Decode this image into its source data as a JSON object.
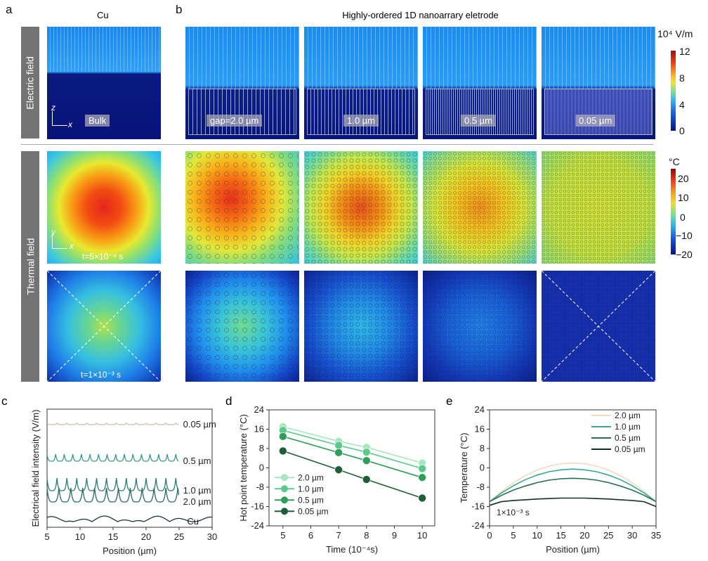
{
  "panel_a": {
    "letter": "a",
    "title": "Cu",
    "bulk_label": "Bulk",
    "axis_z": "z",
    "axis_x": "x",
    "axis_y": "y",
    "time1": "t=5×10⁻⁴ s",
    "time2": "t=1×10⁻³ s"
  },
  "row_labels": {
    "electric": "Electric field",
    "thermal": "Thermal field"
  },
  "panel_b": {
    "letter": "b",
    "title": "Highly-ordered 1D nanoarrary eletrode",
    "gaps": [
      "gap=2.0 µm",
      "1.0 µm",
      "0.5 µm",
      "0.05 µm"
    ]
  },
  "colorbar_e": {
    "unit": "10⁴ V/m",
    "ticks": [
      "12",
      "8",
      "4",
      "0"
    ],
    "colormap": "jet"
  },
  "colorbar_t": {
    "unit": "°C",
    "ticks": [
      "20",
      "10",
      "0",
      "−10",
      "−20"
    ],
    "colormap": "jet"
  },
  "chart_data": [
    {
      "panel": "c",
      "type": "line",
      "xlabel": "Position (µm)",
      "ylabel": "Electrical field intensity (V/m)",
      "xlim": [
        5,
        30
      ],
      "xticks": [
        "5",
        "10",
        "15",
        "20",
        "25",
        "30"
      ],
      "series": [
        {
          "name": "0.05 µm",
          "color": "#c8c0b0"
        },
        {
          "name": "0.5 µm",
          "color": "#3a9a8a"
        },
        {
          "name": "1.0 µm",
          "color": "#2e7d70"
        },
        {
          "name": "2.0 µm",
          "color": "#2a6b60"
        },
        {
          "name": "Cu",
          "color": "#1f3440"
        }
      ]
    },
    {
      "panel": "d",
      "type": "line",
      "xlabel": "Time (10⁻⁴s)",
      "ylabel": "Hot point temperature (°C)",
      "xlim": [
        4.5,
        10.45
      ],
      "ylim": [
        -24,
        24
      ],
      "xticks": [
        "5",
        "6",
        "7",
        "8",
        "9",
        "10"
      ],
      "yticks": [
        "24",
        "16",
        "8",
        "0",
        "-8",
        "-16",
        "-24"
      ],
      "legend": "bottom-left",
      "x": [
        5,
        7,
        8,
        10
      ],
      "series": [
        {
          "name": "2.0 µm",
          "color": "#a8e6c0",
          "values": [
            17,
            11,
            8.5,
            2
          ]
        },
        {
          "name": "1.0 µm",
          "color": "#5cc98a",
          "values": [
            15.5,
            9.3,
            6.5,
            -0.3
          ]
        },
        {
          "name": "0.5 µm",
          "color": "#2e9e5a",
          "values": [
            13,
            6.3,
            3,
            -4
          ]
        },
        {
          "name": "0.05 µm",
          "color": "#1e5e38",
          "values": [
            7,
            -0.8,
            -4.8,
            -12.5
          ]
        }
      ]
    },
    {
      "panel": "e",
      "type": "line",
      "xlabel": "Position (µm)",
      "ylabel": "Temperature (°C)",
      "annotation": "1×10⁻³ s",
      "xlim": [
        0,
        35
      ],
      "ylim": [
        -24,
        24
      ],
      "xticks": [
        "0",
        "5",
        "10",
        "15",
        "20",
        "25",
        "30",
        "35"
      ],
      "yticks": [
        "24",
        "16",
        "8",
        "0",
        "-8",
        "-16",
        "-24"
      ],
      "legend": "top-right",
      "x": [
        0,
        2.5,
        5,
        7.5,
        10,
        12.5,
        15,
        17.5,
        20,
        22.5,
        25,
        27.5,
        30,
        32.5,
        35
      ],
      "series": [
        {
          "name": "2.0 µm",
          "color": "#f0dcc0",
          "values": [
            -14,
            -9.8,
            -6.2,
            -3.2,
            -0.9,
            0.7,
            1.7,
            2,
            1.7,
            0.7,
            -0.9,
            -3.2,
            -6.2,
            -9.8,
            -14
          ]
        },
        {
          "name": "1.0 µm",
          "color": "#3aa890",
          "values": [
            -14,
            -10.4,
            -7.4,
            -4.9,
            -3,
            -1.6,
            -0.8,
            -0.5,
            -0.8,
            -1.6,
            -3,
            -4.9,
            -7.4,
            -10.4,
            -14
          ]
        },
        {
          "name": "0.5 µm",
          "color": "#2a6b5a",
          "values": [
            -14,
            -11.4,
            -9.2,
            -7.5,
            -6.1,
            -5.1,
            -4.5,
            -4.3,
            -4.5,
            -5.1,
            -6.1,
            -7.5,
            -9.2,
            -11.4,
            -14
          ]
        },
        {
          "name": "0.05 µm",
          "color": "#12302a",
          "values": [
            -15.5,
            -14,
            -13.5,
            -13.2,
            -12.9,
            -12.7,
            -12.5,
            -12.5,
            -12.5,
            -12.7,
            -12.9,
            -13.2,
            -13.5,
            -14,
            -16
          ]
        }
      ]
    }
  ]
}
